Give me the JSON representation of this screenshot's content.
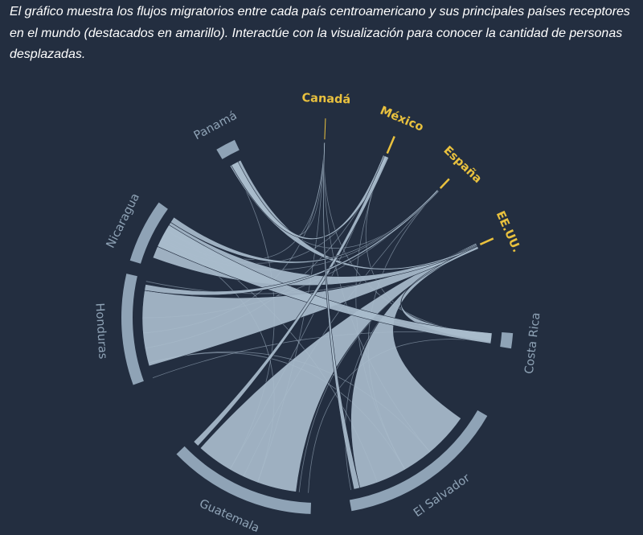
{
  "intro_text": "El gráfico muestra los flujos migratorios entre cada país centroamericano y sus principales países receptores en el mundo (destacados en amarillo). Interactúe con la visualización para conocer la cantidad de personas desplazadas.",
  "colors": {
    "background": "#232e40",
    "intro_text": "#ffffff",
    "origin_arc": "#8fa3b6",
    "ribbon": "#a9bccc",
    "origin_label": "#8fa3b6",
    "receiver_accent": "#e9c13e"
  },
  "origin_countries": [
    {
      "id": "panama",
      "label": "Panamá"
    },
    {
      "id": "nicaragua",
      "label": "Nicaragua"
    },
    {
      "id": "honduras",
      "label": "Honduras"
    },
    {
      "id": "guatemala",
      "label": "Guatemala"
    },
    {
      "id": "el_salvador",
      "label": "El Salvador"
    },
    {
      "id": "costa_rica",
      "label": "Costa Rica"
    }
  ],
  "receiver_countries": [
    {
      "id": "canada",
      "label": "Canadá"
    },
    {
      "id": "mexico",
      "label": "México"
    },
    {
      "id": "espana",
      "label": "España"
    },
    {
      "id": "eeuu",
      "label": "EE.UU."
    }
  ]
}
